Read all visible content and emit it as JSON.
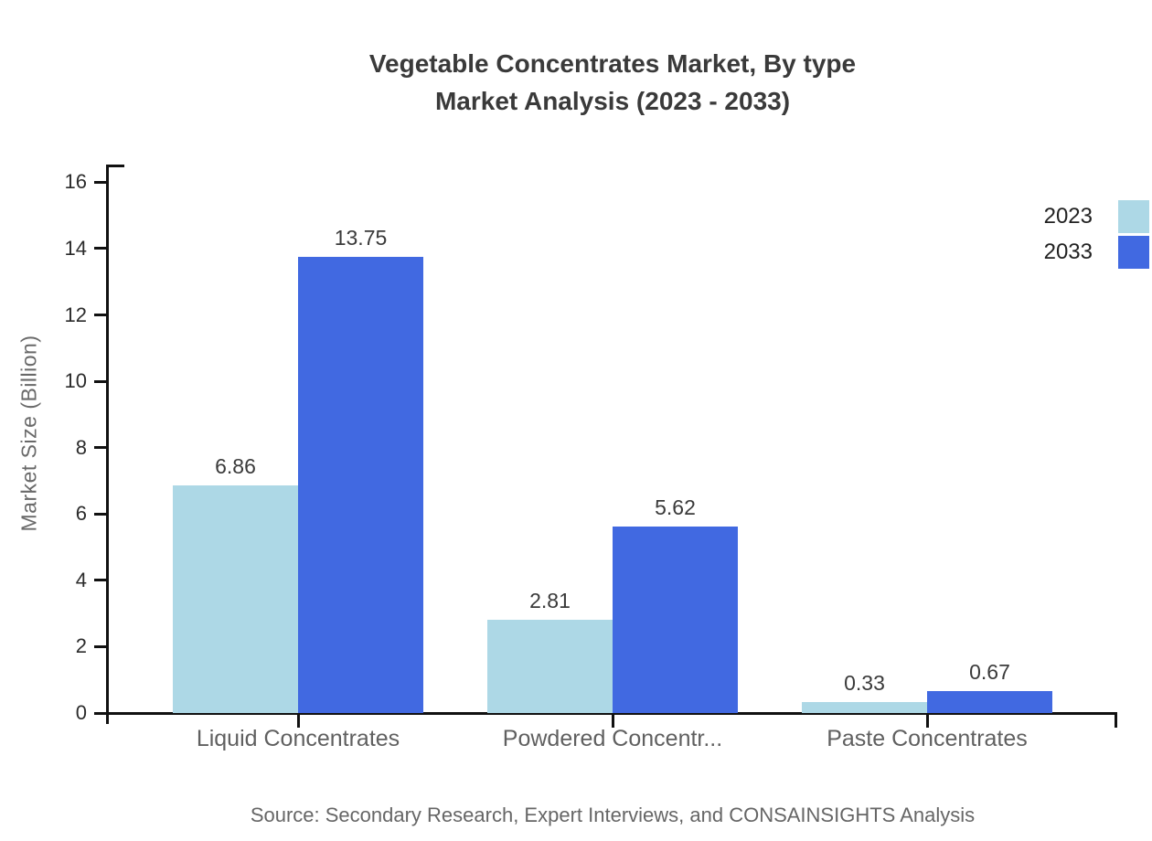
{
  "title": {
    "line1": "Vegetable Concentrates Market, By type",
    "line2": "Market Analysis (2023 - 2033)"
  },
  "y_axis_label": "Market Size (Billion)",
  "source": "Source: Secondary Research, Expert Interviews, and CONSAINSIGHTS Analysis",
  "colors": {
    "series_2023": "#add8e6",
    "series_2033": "#4169e1",
    "axis": "#111111",
    "title_text": "#3a3a3a",
    "muted_text": "#666666"
  },
  "chart_data": {
    "type": "bar",
    "title": "Vegetable Concentrates Market, By type Market Analysis (2023 - 2033)",
    "categories": [
      "Liquid Concentrates",
      "Powdered Concentr...",
      "Paste Concentrates"
    ],
    "series": [
      {
        "name": "2023",
        "color": "#add8e6",
        "values": [
          6.86,
          2.81,
          0.33
        ]
      },
      {
        "name": "2033",
        "color": "#4169e1",
        "values": [
          13.75,
          5.62,
          0.67
        ]
      }
    ],
    "value_labels": [
      "6.86",
      "13.75",
      "2.81",
      "5.62",
      "0.33",
      "0.67"
    ],
    "xlabel": "",
    "ylabel": "Market Size (Billion)",
    "ylim": [
      0,
      16
    ],
    "ytick_step": 2,
    "y_ticks": [
      "0",
      "2",
      "4",
      "6",
      "8",
      "10",
      "12",
      "14",
      "16"
    ],
    "grid": false,
    "legend_position": "top-right",
    "legend_entries": [
      "2023",
      "2033"
    ]
  }
}
